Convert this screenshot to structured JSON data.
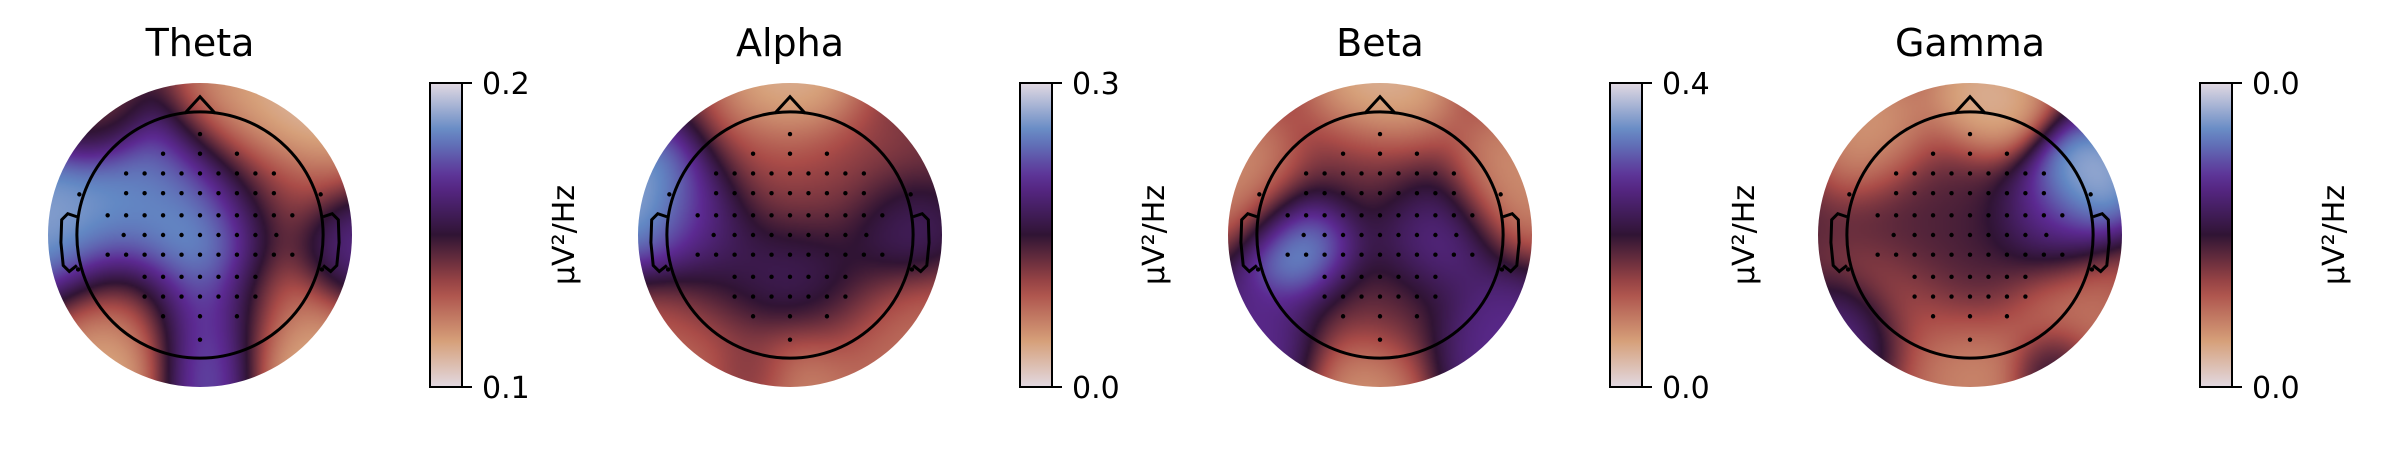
{
  "chart_data": [
    {
      "type": "heatmap",
      "title": "Theta",
      "colorbar": {
        "label": "μV²/Hz",
        "min_label": "0.1",
        "max_label": "0.2",
        "vmin": 0.1,
        "vmax": 0.2
      },
      "colormap": "twilight_shifted",
      "blobs": [
        {
          "x": -0.98,
          "y": 0.05,
          "v": 0.95,
          "s": 0.28
        },
        {
          "x": -0.55,
          "y": 0.18,
          "v": 0.9,
          "s": 0.32
        },
        {
          "x": -0.1,
          "y": 0.3,
          "v": 0.8,
          "s": 0.3
        },
        {
          "x": 0.0,
          "y": -0.05,
          "v": 1.0,
          "s": 0.28
        },
        {
          "x": 0.05,
          "y": -0.6,
          "v": 0.88,
          "s": 0.25
        },
        {
          "x": 0.05,
          "y": -0.92,
          "v": 0.8,
          "s": 0.2
        },
        {
          "x": 0.25,
          "y": 0.8,
          "v": 0.1,
          "s": 0.25
        },
        {
          "x": 0.5,
          "y": 0.3,
          "v": 0.3,
          "s": 0.3
        },
        {
          "x": 0.55,
          "y": -0.5,
          "v": 0.2,
          "s": 0.3
        },
        {
          "x": -0.5,
          "y": -0.55,
          "v": 0.2,
          "s": 0.3
        },
        {
          "x": -0.55,
          "y": -0.85,
          "v": 0.05,
          "s": 0.22
        },
        {
          "x": 0.65,
          "y": -0.85,
          "v": 0.05,
          "s": 0.22
        },
        {
          "x": 0.7,
          "y": 0.8,
          "v": 0.02,
          "s": 0.25
        },
        {
          "x": 0.95,
          "y": -0.1,
          "v": 0.75,
          "s": 0.2
        },
        {
          "x": -0.7,
          "y": 0.8,
          "v": 0.35,
          "s": 0.2
        }
      ]
    },
    {
      "type": "heatmap",
      "title": "Alpha",
      "colorbar": {
        "label": "μV²/Hz",
        "min_label": "0.0",
        "max_label": "0.3",
        "vmin": 0.0,
        "vmax": 0.3
      },
      "colormap": "twilight_shifted",
      "blobs": [
        {
          "x": -0.88,
          "y": 0.2,
          "v": 1.0,
          "s": 0.25
        },
        {
          "x": -0.6,
          "y": 0.1,
          "v": 0.65,
          "s": 0.22
        },
        {
          "x": 0.0,
          "y": 0.95,
          "v": 0.05,
          "s": 0.25
        },
        {
          "x": -0.1,
          "y": 0.4,
          "v": 0.32,
          "s": 0.3
        },
        {
          "x": 0.45,
          "y": 0.3,
          "v": 0.35,
          "s": 0.3
        },
        {
          "x": 0.7,
          "y": 0.05,
          "v": 0.68,
          "s": 0.2
        },
        {
          "x": 0.2,
          "y": -0.3,
          "v": 0.62,
          "s": 0.3
        },
        {
          "x": -0.35,
          "y": -0.3,
          "v": 0.6,
          "s": 0.3
        },
        {
          "x": -0.6,
          "y": -0.7,
          "v": 0.2,
          "s": 0.3
        },
        {
          "x": 0.6,
          "y": -0.65,
          "v": 0.2,
          "s": 0.3
        },
        {
          "x": 0.05,
          "y": -0.9,
          "v": 0.15,
          "s": 0.22
        },
        {
          "x": -0.25,
          "y": -0.9,
          "v": 0.45,
          "s": 0.15
        }
      ]
    },
    {
      "type": "heatmap",
      "title": "Beta",
      "colorbar": {
        "label": "μV²/Hz",
        "min_label": "0.0",
        "max_label": "0.4",
        "vmin": 0.0,
        "vmax": 0.4
      },
      "colormap": "twilight_shifted",
      "blobs": [
        {
          "x": -0.5,
          "y": -0.05,
          "v": 1.0,
          "s": 0.22
        },
        {
          "x": 0.35,
          "y": 0.0,
          "v": 0.72,
          "s": 0.24
        },
        {
          "x": -0.8,
          "y": -0.75,
          "v": 0.7,
          "s": 0.25
        },
        {
          "x": 0.75,
          "y": -0.7,
          "v": 0.7,
          "s": 0.25
        },
        {
          "x": 0.0,
          "y": 0.9,
          "v": 0.03,
          "s": 0.25
        },
        {
          "x": -0.1,
          "y": 0.4,
          "v": 0.42,
          "s": 0.3
        },
        {
          "x": 0.0,
          "y": -0.5,
          "v": 0.42,
          "s": 0.3
        },
        {
          "x": -0.85,
          "y": 0.35,
          "v": 0.15,
          "s": 0.25
        },
        {
          "x": 0.85,
          "y": 0.35,
          "v": 0.15,
          "s": 0.25
        },
        {
          "x": -0.1,
          "y": -0.95,
          "v": 0.1,
          "s": 0.22
        }
      ]
    },
    {
      "type": "heatmap",
      "title": "Gamma",
      "colorbar": {
        "label": "μV²/Hz",
        "min_label": "0.0",
        "max_label": "0.0",
        "vmin": 0.0,
        "vmax": 0.0
      },
      "colormap": "twilight_shifted",
      "blobs": [
        {
          "x": 0.75,
          "y": 0.35,
          "v": 1.0,
          "s": 0.2
        },
        {
          "x": 0.5,
          "y": 0.1,
          "v": 0.7,
          "s": 0.22
        },
        {
          "x": -0.2,
          "y": 0.2,
          "v": 0.45,
          "s": 0.3
        },
        {
          "x": -0.05,
          "y": -0.25,
          "v": 0.5,
          "s": 0.3
        },
        {
          "x": -0.75,
          "y": -0.7,
          "v": 0.82,
          "s": 0.2
        },
        {
          "x": 0.1,
          "y": 0.85,
          "v": 0.06,
          "s": 0.22
        },
        {
          "x": -0.6,
          "y": 0.65,
          "v": 0.12,
          "s": 0.22
        },
        {
          "x": 0.6,
          "y": -0.6,
          "v": 0.2,
          "s": 0.3
        },
        {
          "x": -0.4,
          "y": -0.6,
          "v": 0.22,
          "s": 0.3
        },
        {
          "x": 0.55,
          "y": -0.88,
          "v": 0.65,
          "s": 0.15
        },
        {
          "x": 0.0,
          "y": -0.85,
          "v": 0.15,
          "s": 0.22
        }
      ]
    }
  ]
}
